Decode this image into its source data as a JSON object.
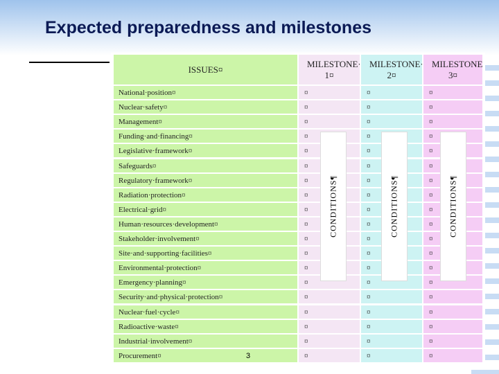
{
  "title": "Expected preparedness and milestones",
  "table": {
    "header": [
      "ISSUES¤",
      "MILESTONE·· 1¤",
      "MILESTONE·· 2¤",
      "MILESTONE·· 3¤"
    ],
    "rows": [
      [
        "National·position¤",
        "¤",
        "¤",
        "¤"
      ],
      [
        "Nuclear·safety¤",
        "¤",
        "¤",
        "¤"
      ],
      [
        "Management¤",
        "¤",
        "¤",
        "¤"
      ],
      [
        "Funding·and·financing¤",
        "¤",
        "¤",
        "¤"
      ],
      [
        "Legislative·framework¤",
        "¤",
        "¤",
        "¤"
      ],
      [
        "Safeguards¤",
        "¤",
        "¤",
        "¤"
      ],
      [
        "Regulatory·framework¤",
        "¤",
        "¤",
        "¤"
      ],
      [
        "Radiation·protection¤",
        "¤",
        "¤",
        "¤"
      ],
      [
        "Electrical·grid¤",
        "¤",
        "¤",
        "¤"
      ],
      [
        "Human·resources·development¤",
        "¤",
        "¤",
        "¤"
      ],
      [
        "Stakeholder·involvement¤",
        "¤",
        "¤",
        "¤"
      ],
      [
        "Site·and·supporting·facilities¤",
        "¤",
        "¤",
        "¤"
      ],
      [
        "Environmental·protection¤",
        "¤",
        "¤",
        "¤"
      ],
      [
        "Emergency·planning¤",
        "¤",
        "¤",
        "¤"
      ],
      [
        "Security·and·physical·protection¤",
        "¤",
        "¤",
        "¤"
      ],
      [
        "Nuclear·fuel·cycle¤",
        "¤",
        "¤",
        "¤"
      ],
      [
        "Radioactive·waste¤",
        "¤",
        "¤",
        "¤"
      ],
      [
        "Industrial·involvement¤",
        "¤",
        "¤",
        "¤"
      ],
      [
        "Procurement¤",
        "¤",
        "¤",
        "¤"
      ]
    ],
    "conditions": [
      "CONDITIONS¶",
      "CONDITIONS¶",
      "CONDITIONS¶"
    ]
  },
  "page_number": "3"
}
